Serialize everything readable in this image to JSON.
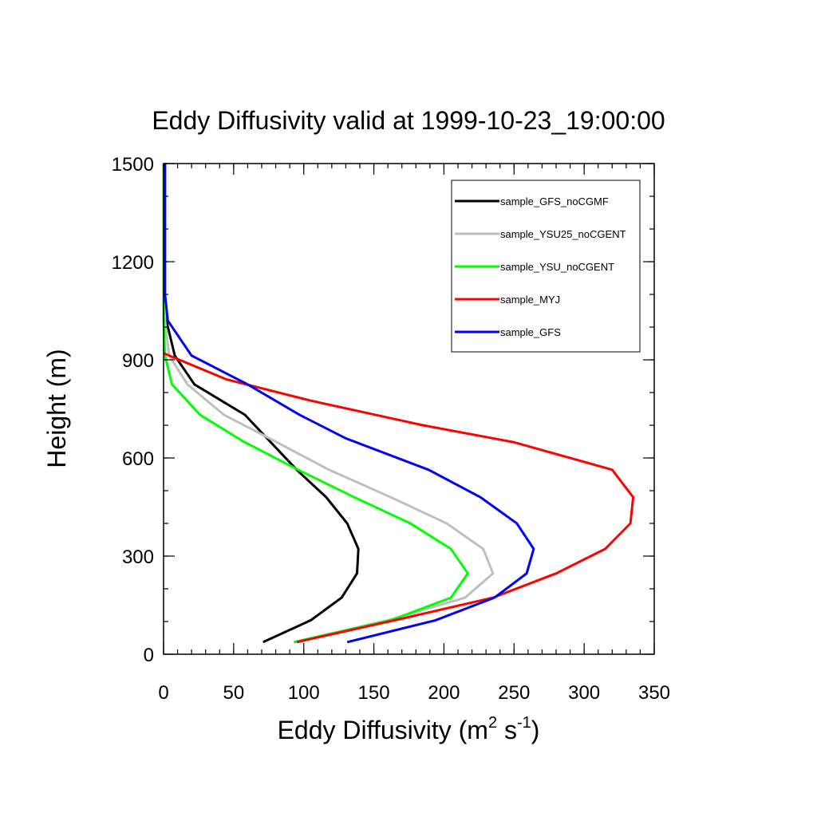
{
  "chart_data": {
    "type": "line",
    "title": "Eddy Diffusivity valid at 1999-10-23_19:00:00",
    "xlabel_base": "Eddy Diffusivity (m",
    "xlabel_sup1": "2",
    "xlabel_mid": " s",
    "xlabel_sup2": "-1",
    "xlabel_end": ")",
    "ylabel": "Height (m)",
    "xlim": [
      0,
      350
    ],
    "ylim": [
      0,
      1500
    ],
    "xticks": [
      0,
      50,
      100,
      150,
      200,
      250,
      300,
      350
    ],
    "yticks": [
      0,
      300,
      600,
      900,
      1200,
      1500
    ],
    "grid": false,
    "legend_position": "top-right",
    "series": [
      {
        "name": "sample_GFS_noCGMF",
        "color": "#000000",
        "x": [
          71,
          105,
          127,
          138,
          139,
          131,
          116,
          95,
          58,
          22,
          8,
          2,
          1,
          1,
          1
        ],
        "y": [
          37,
          104,
          173,
          247,
          322,
          400,
          480,
          564,
          732,
          825,
          913,
          1020,
          1100,
          1300,
          1500
        ]
      },
      {
        "name": "sample_YSU25_noCGENT",
        "color": "#bfbfbf",
        "x": [
          93,
          160,
          215,
          235,
          228,
          202,
          162,
          118,
          80,
          43,
          17,
          4,
          1,
          1,
          1
        ],
        "y": [
          37,
          104,
          173,
          247,
          322,
          400,
          480,
          564,
          650,
          732,
          825,
          913,
          1020,
          1300,
          1500
        ]
      },
      {
        "name": "sample_YSU_noCGENT",
        "color": "#00ff00",
        "x": [
          93,
          162,
          205,
          217,
          205,
          176,
          136,
          96,
          57,
          26,
          6,
          1,
          0,
          0,
          0
        ],
        "y": [
          37,
          104,
          173,
          247,
          322,
          400,
          480,
          564,
          650,
          732,
          825,
          913,
          1020,
          1300,
          1500
        ]
      },
      {
        "name": "sample_MYJ",
        "color": "#ff0000",
        "x": [
          95,
          165,
          235,
          280,
          315,
          333,
          335,
          320,
          250,
          185,
          105,
          45,
          0
        ],
        "y": [
          37,
          104,
          173,
          247,
          322,
          400,
          480,
          564,
          648,
          700,
          775,
          840,
          920
        ]
      },
      {
        "name": "sample_GFS",
        "color": "#0000ff",
        "x": [
          131,
          194,
          236,
          259,
          264,
          252,
          226,
          189,
          130,
          97,
          60,
          20,
          3,
          1,
          1,
          1
        ],
        "y": [
          37,
          104,
          173,
          247,
          322,
          400,
          480,
          564,
          660,
          732,
          825,
          913,
          1020,
          1100,
          1300,
          1500
        ]
      }
    ]
  }
}
